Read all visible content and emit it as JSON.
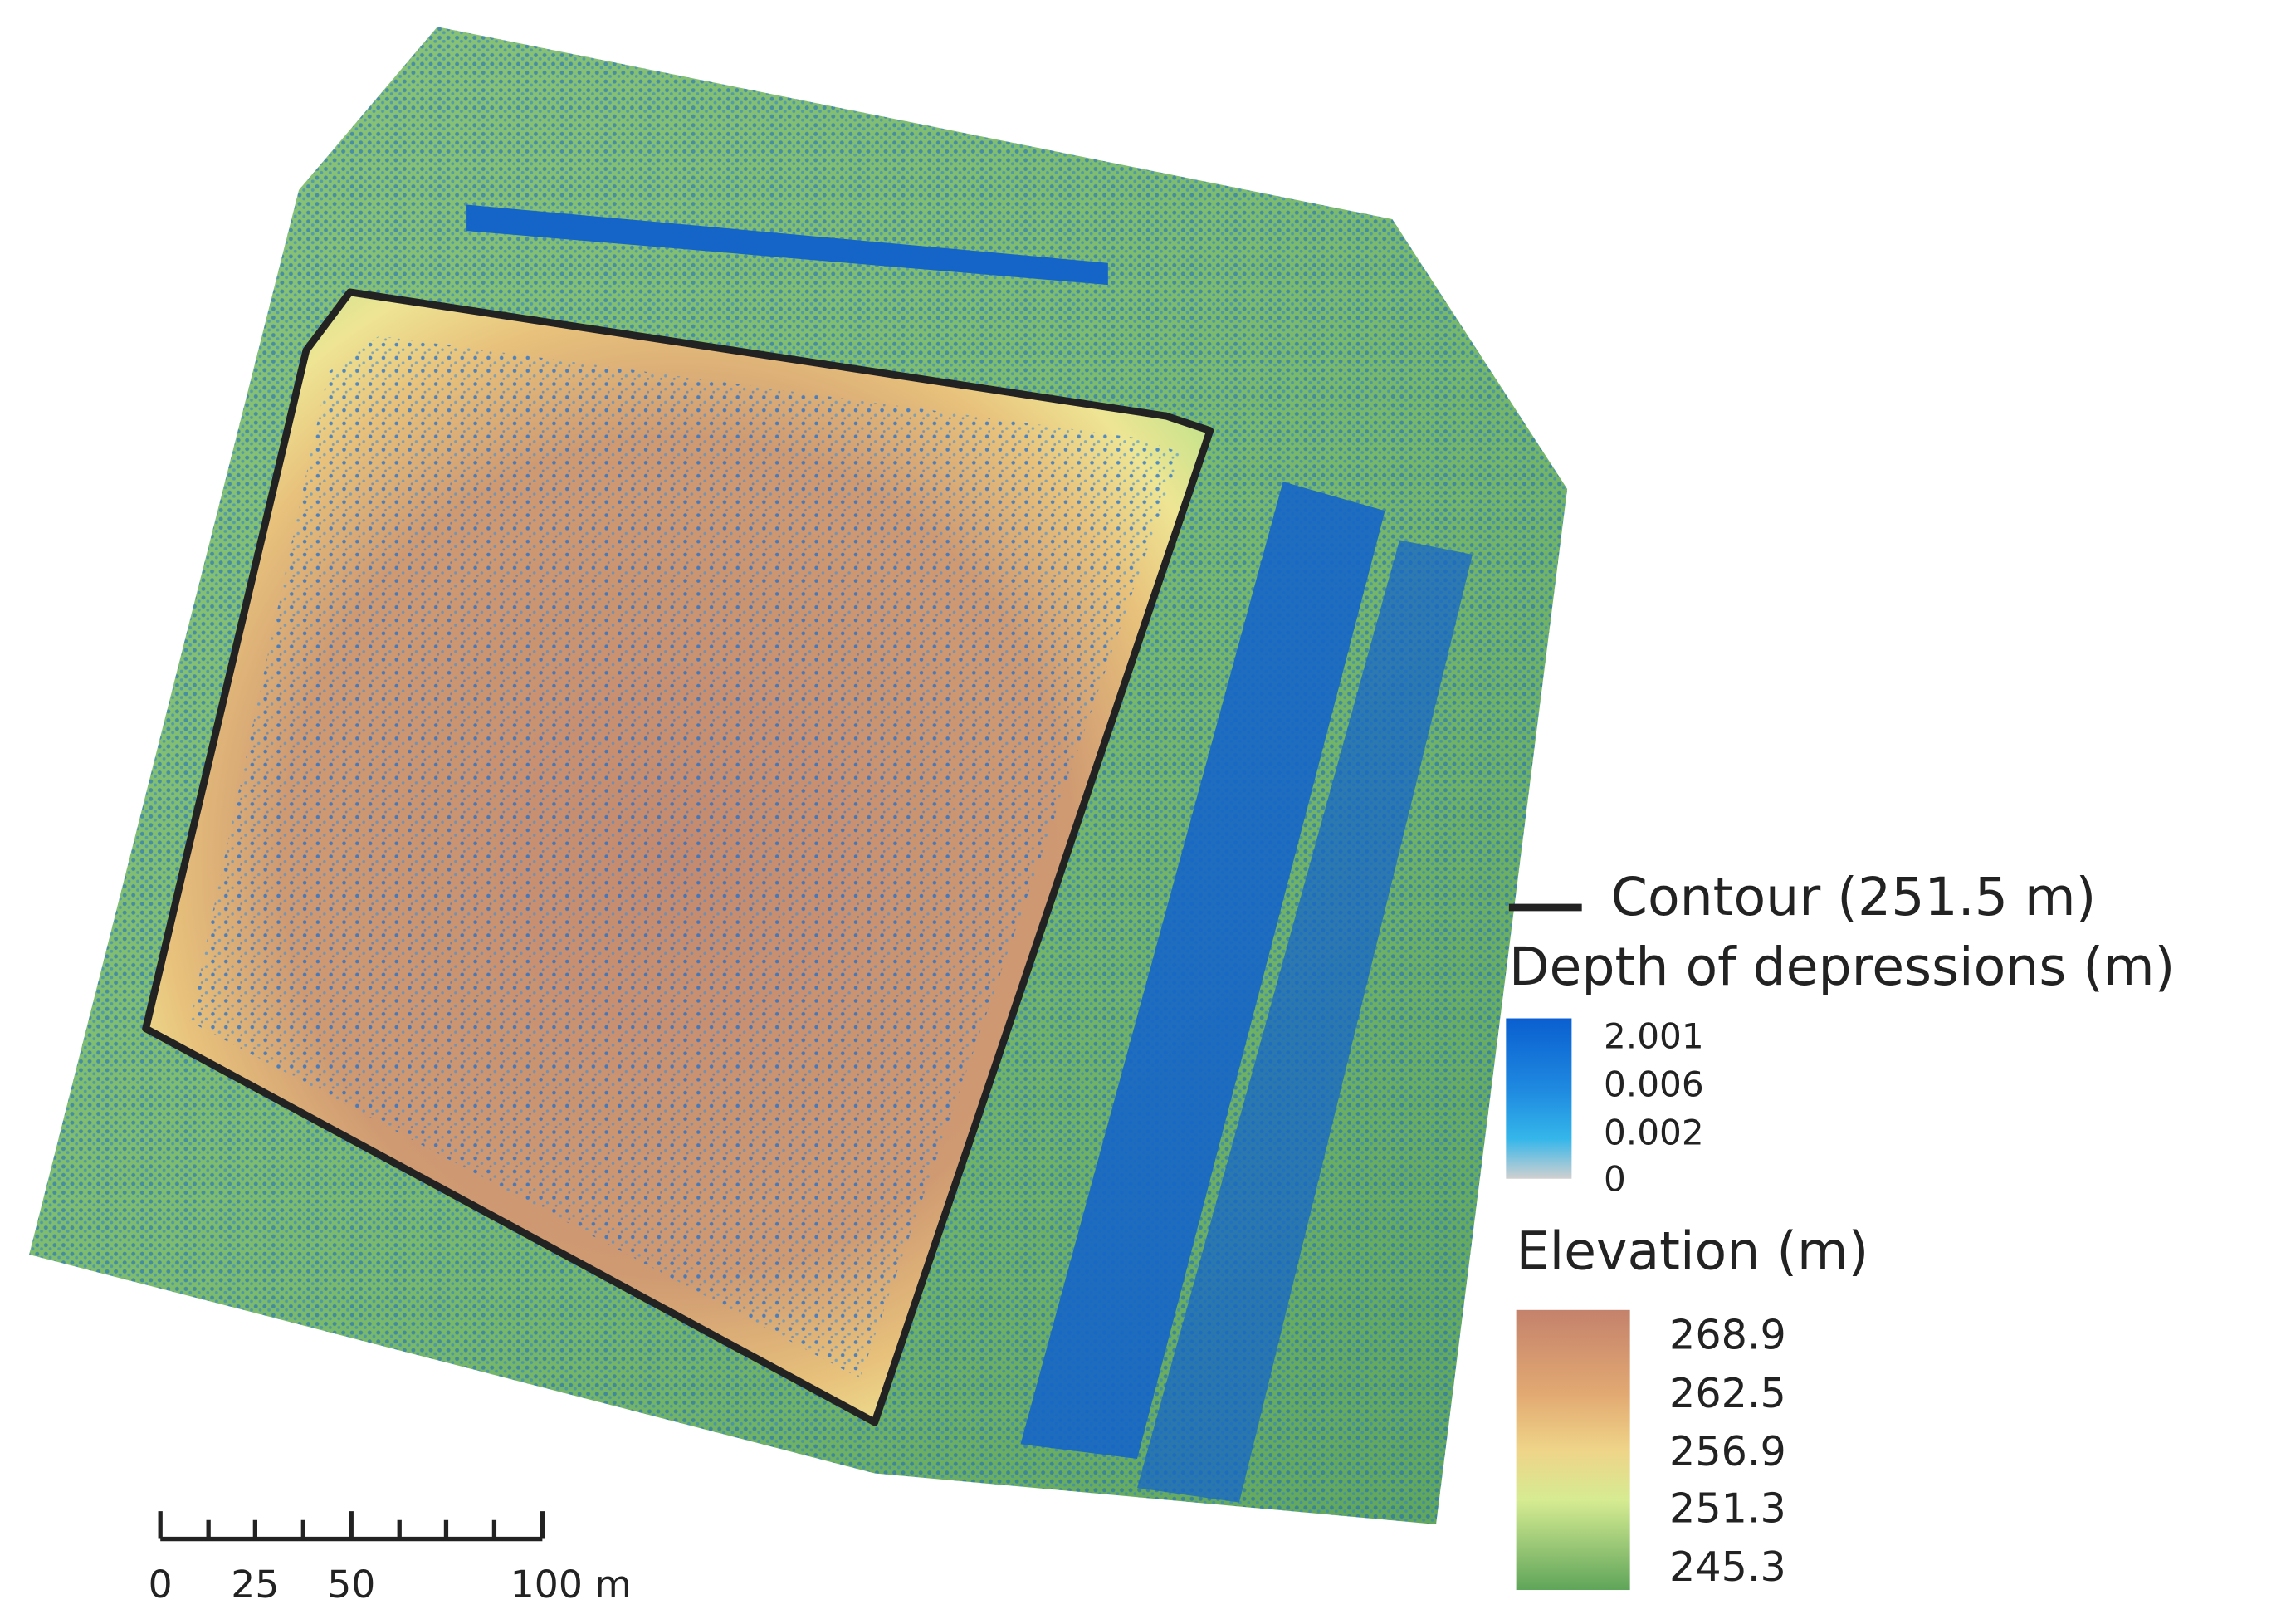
{
  "legend": {
    "contour": "Contour (251.5 m)",
    "depth": {
      "title": "Depth of depressions (m)",
      "ticks": [
        "2.001",
        "0.006",
        "0.002",
        "0"
      ]
    },
    "elevation": {
      "title": "Elevation (m)",
      "ticks": [
        "268.9",
        "262.5",
        "256.9",
        "251.3",
        "245.3"
      ]
    }
  },
  "scale_bar": {
    "labels": [
      "0",
      "25",
      "50",
      "100 m"
    ]
  }
}
